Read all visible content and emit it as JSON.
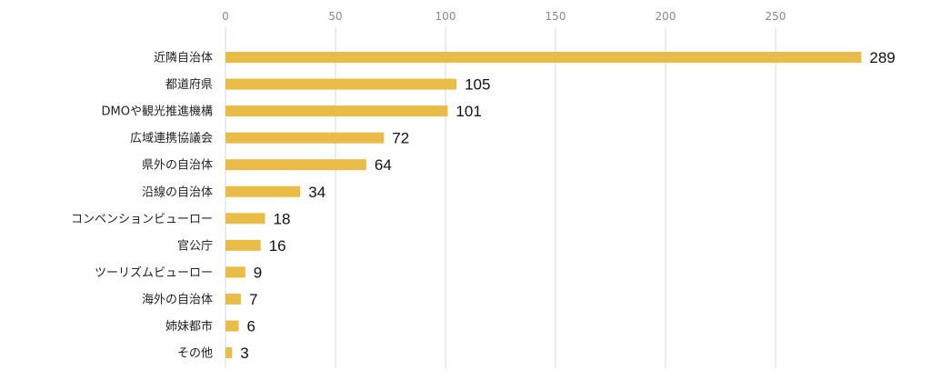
{
  "chart_data": {
    "type": "bar",
    "orientation": "horizontal",
    "title": "",
    "xlabel": "",
    "ylabel": "",
    "xlim": [
      0,
      289
    ],
    "x_ticks": [
      0,
      50,
      100,
      150,
      200,
      250
    ],
    "grid": true,
    "legend": "none",
    "bar_color": "#E9BB47",
    "categories": [
      "近隣自治体",
      "都道府県",
      "DMOや観光推進機構",
      "広域連携協議会",
      "県外の自治体",
      "沿線の自治体",
      "コンベンションビューロー",
      "官公庁",
      "ツーリズムビューロー",
      "海外の自治体",
      "姉妹都市",
      "その他"
    ],
    "values": [
      289,
      105,
      101,
      72,
      64,
      34,
      18,
      16,
      9,
      7,
      6,
      3
    ]
  }
}
